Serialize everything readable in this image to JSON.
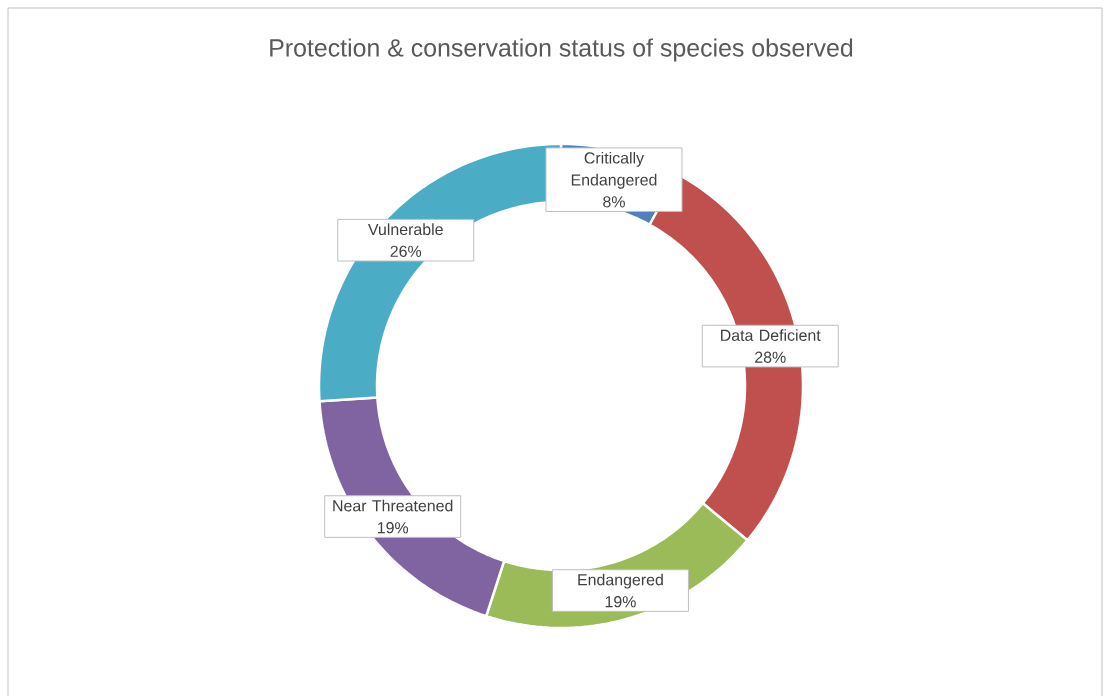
{
  "chart_data": {
    "type": "donut",
    "title": "Protection & conservation status of species observed",
    "categories": [
      "Critically Endangered",
      "Data Deficient",
      "Endangered",
      "Near Threatened",
      "Vulnerable"
    ],
    "values": [
      8,
      28,
      19,
      19,
      26
    ],
    "value_labels": [
      "8%",
      "28%",
      "19%",
      "19%",
      "26%"
    ],
    "colors": [
      "#4f81bd",
      "#c0504d",
      "#9bbb59",
      "#8064a2",
      "#4bacc6"
    ]
  }
}
